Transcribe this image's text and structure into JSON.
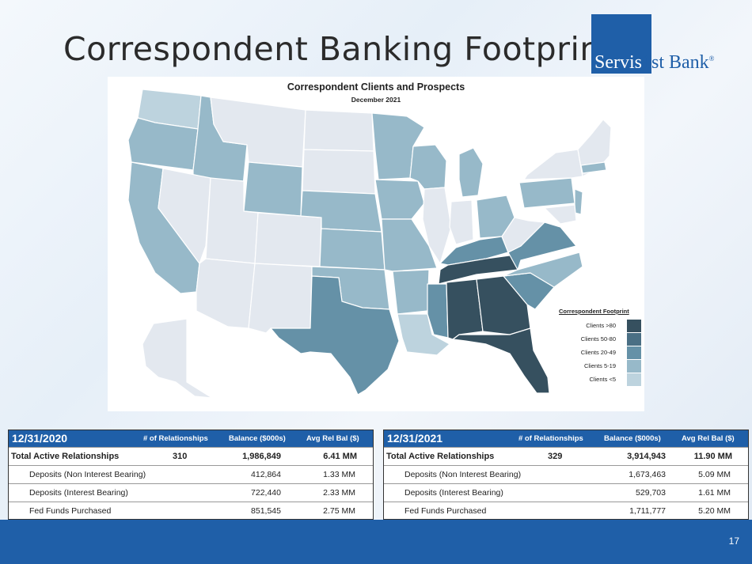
{
  "slide": {
    "title": "Correspondent Banking Footprint",
    "page_number": "17"
  },
  "logo": {
    "part1": "Servis",
    "part2": "1st Bank",
    "mark": "®"
  },
  "map": {
    "title": "Correspondent Clients and Prospects",
    "subtitle": "December 2021",
    "legend_title": "Correspondent Footprint",
    "legend": [
      {
        "label": "Clients >80",
        "color": "#36505f"
      },
      {
        "label": "Clients 50-80",
        "color": "#4a6f84"
      },
      {
        "label": "Clients 20-49",
        "color": "#6591a7"
      },
      {
        "label": "Clients 5-19",
        "color": "#97b9c9"
      },
      {
        "label": "Clients <5",
        "color": "#bdd3de"
      }
    ],
    "base_color": "#e3e8ef"
  },
  "tables": {
    "columns": [
      "# of Relationships",
      "Balance ($000s)",
      "Avg Rel Bal ($)"
    ],
    "left": {
      "date": "12/31/2020",
      "rows": [
        {
          "label": "Total Active Relationships",
          "count": "310",
          "balance": "1,986,849",
          "avg": "6.41 MM"
        },
        {
          "label": "Deposits (Non Interest Bearing)",
          "count": "",
          "balance": "412,864",
          "avg": "1.33 MM"
        },
        {
          "label": "Deposits (Interest Bearing)",
          "count": "",
          "balance": "722,440",
          "avg": "2.33 MM"
        },
        {
          "label": "Fed Funds Purchased",
          "count": "",
          "balance": "851,545",
          "avg": "2.75 MM"
        }
      ]
    },
    "right": {
      "date": "12/31/2021",
      "rows": [
        {
          "label": "Total Active Relationships",
          "count": "329",
          "balance": "3,914,943",
          "avg": "11.90 MM"
        },
        {
          "label": "Deposits (Non Interest Bearing)",
          "count": "",
          "balance": "1,673,463",
          "avg": "5.09 MM"
        },
        {
          "label": "Deposits (Interest Bearing)",
          "count": "",
          "balance": "529,703",
          "avg": "1.61 MM"
        },
        {
          "label": "Fed Funds Purchased",
          "count": "",
          "balance": "1,711,777",
          "avg": "5.20 MM"
        }
      ]
    }
  },
  "colors": {
    "brand_blue": "#1f5fa8"
  }
}
